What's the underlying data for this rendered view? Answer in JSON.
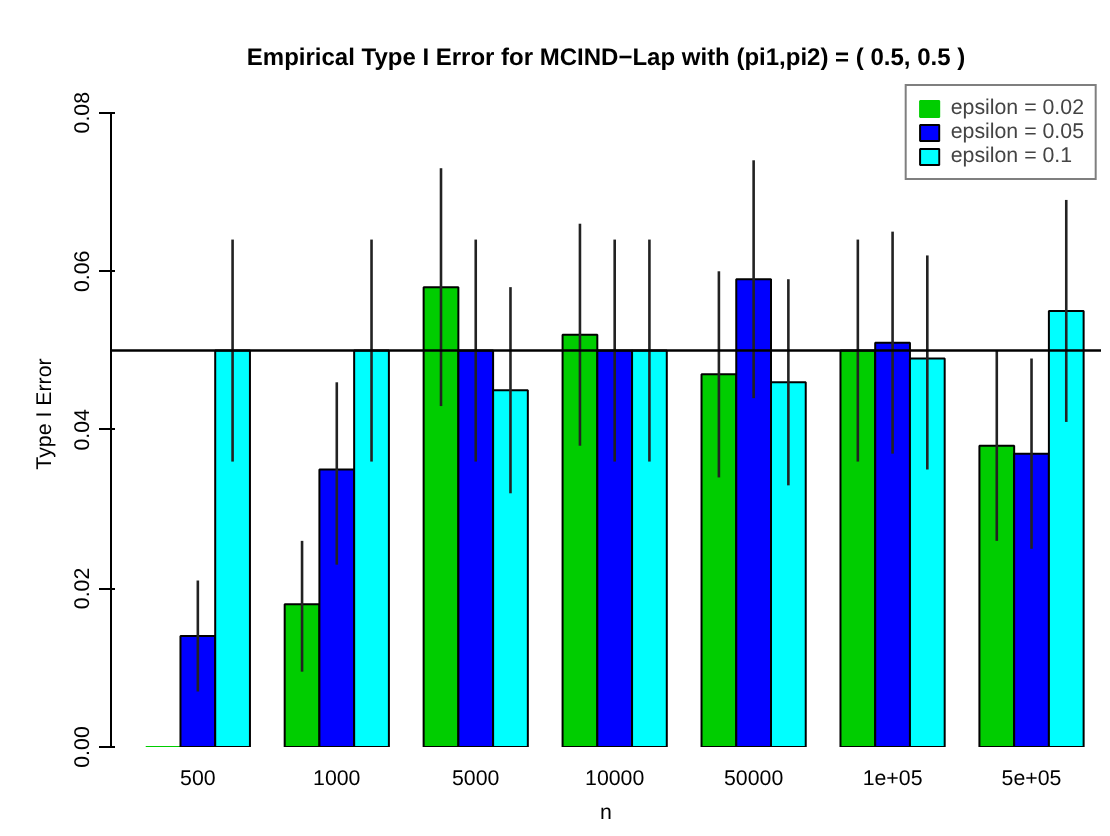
{
  "chart_data": {
    "type": "bar",
    "title": "Empirical Type I Error for MCIND−Lap with (pi1,pi2) = ( 0.5, 0.5 )",
    "xlabel": "n",
    "ylabel": "Type I Error",
    "categories": [
      "500",
      "1000",
      "5000",
      "10000",
      "50000",
      "1e+05",
      "5e+05"
    ],
    "series": [
      {
        "name": "epsilon = 0.02",
        "color": "#00cd00",
        "values": [
          0,
          0.018,
          0.058,
          0.052,
          0.047,
          0.05,
          0.038
        ],
        "errors": [
          null,
          [
            0.0095,
            0.026
          ],
          [
            0.043,
            0.073
          ],
          [
            0.038,
            0.066
          ],
          [
            0.034,
            0.06
          ],
          [
            0.036,
            0.064
          ],
          [
            0.026,
            0.05
          ]
        ]
      },
      {
        "name": "epsilon = 0.05",
        "color": "#0000ff",
        "values": [
          0.014,
          0.035,
          0.05,
          0.05,
          0.059,
          0.051,
          0.037
        ],
        "errors": [
          [
            0.007,
            0.021
          ],
          [
            0.023,
            0.046
          ],
          [
            0.036,
            0.064
          ],
          [
            0.036,
            0.064
          ],
          [
            0.044,
            0.074
          ],
          [
            0.037,
            0.065
          ],
          [
            0.025,
            0.049
          ]
        ]
      },
      {
        "name": "epsilon = 0.1",
        "color": "#00ffff",
        "values": [
          0.05,
          0.05,
          0.045,
          0.05,
          0.046,
          0.049,
          0.055
        ],
        "errors": [
          [
            0.036,
            0.064
          ],
          [
            0.036,
            0.064
          ],
          [
            0.032,
            0.058
          ],
          [
            0.036,
            0.064
          ],
          [
            0.033,
            0.059
          ],
          [
            0.035,
            0.062
          ],
          [
            0.041,
            0.069
          ]
        ]
      }
    ],
    "ylim": [
      0,
      0.084
    ],
    "yticks": [
      {
        "value": 0,
        "label": "0.00"
      },
      {
        "value": 0.02,
        "label": "0.02"
      },
      {
        "value": 0.04,
        "label": "0.04"
      },
      {
        "value": 0.06,
        "label": "0.06"
      },
      {
        "value": 0.08,
        "label": "0.08"
      }
    ],
    "ref_lines": [
      {
        "axis": "y",
        "value": 0.05,
        "color": "#000000"
      }
    ],
    "legend": "top right",
    "grid": false
  }
}
